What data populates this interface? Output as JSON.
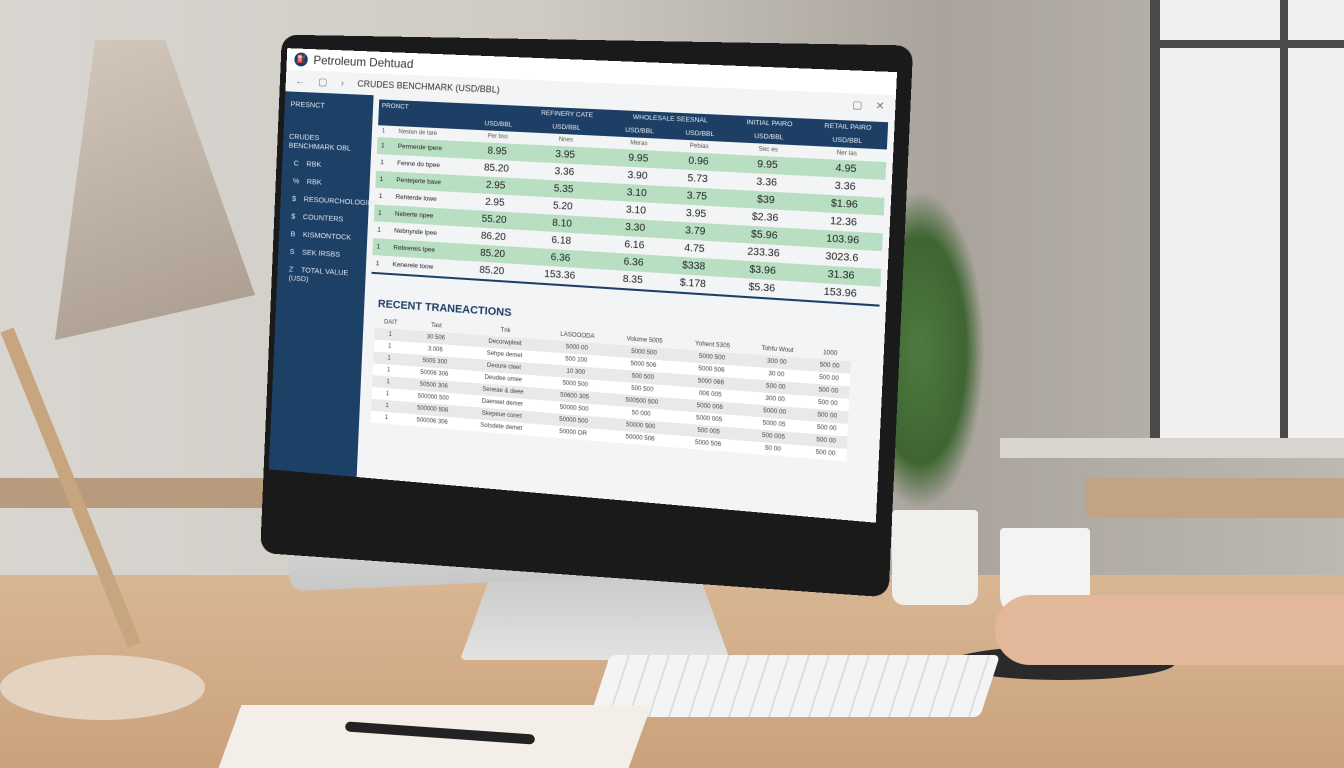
{
  "app": {
    "title": "Petroleum Dehtuad",
    "icon": "fuel-icon",
    "breadcrumb": "CRUDES BENCHMARK (USD/BBL)",
    "nav": {
      "back": "←",
      "page": "▢",
      "forward": "›"
    },
    "window": {
      "restore": "▢",
      "close": "✕"
    }
  },
  "sidebar": {
    "title": "PRESNCT",
    "subtitle": "CRUDES BENCHMARK OBL",
    "items": [
      {
        "icon": "C",
        "label": "RBK"
      },
      {
        "icon": "%",
        "label": "RBK"
      },
      {
        "icon": "$",
        "label": "RESOURCHOLOGIES"
      },
      {
        "icon": "$",
        "label": "COUNTERS"
      },
      {
        "icon": "B",
        "label": "KISMONTOCK"
      },
      {
        "icon": "S",
        "label": "SEK IRSBS"
      },
      {
        "icon": "Z",
        "label": "TOTAL VALUE (USD)"
      }
    ]
  },
  "table": {
    "product_header": "PRONCT",
    "groups": [
      "REFINERY CATE",
      "WHOLESALE SEESNAL",
      "INITIAL PAIRO",
      "RETAIL PAIRO"
    ],
    "units": [
      "USD/BBL",
      "USD/BBL",
      "USD/BBL",
      "USD/BBL",
      "USD/BBL",
      "USD/BBL"
    ],
    "subheader": {
      "num": "1",
      "label": "Nesten de tare",
      "cells": [
        "Per bss",
        "Nnes",
        "Meras",
        "Pebias",
        "Sec es",
        "Ner las"
      ]
    },
    "rows": [
      {
        "num": "1",
        "label": "Permerde tpere",
        "values": [
          "8.95",
          "3.95",
          "9.95",
          "0.96",
          "9.95",
          "4.95"
        ]
      },
      {
        "num": "1",
        "label": "Fenne do bpee",
        "values": [
          "85.20",
          "3.36",
          "3.90",
          "5.73",
          "3.36",
          "3.36"
        ]
      },
      {
        "num": "1",
        "label": "Pentejerte bave",
        "values": [
          "2.95",
          "5.35",
          "3.10",
          "3.75",
          "$39",
          "$1.96"
        ]
      },
      {
        "num": "1",
        "label": "Rehterde lowe",
        "values": [
          "2.95",
          "5.20",
          "3.10",
          "3.95",
          "$2.36",
          "12.36"
        ]
      },
      {
        "num": "1",
        "label": "Neberte npee",
        "values": [
          "55.20",
          "8.10",
          "3.30",
          "3.79",
          "$5.96",
          "103.96"
        ]
      },
      {
        "num": "1",
        "label": "Nebnynde lpee",
        "values": [
          "86.20",
          "6.18",
          "6.16",
          "4.75",
          "233.36",
          "3023.6"
        ]
      },
      {
        "num": "1",
        "label": "Rebrereis tpee",
        "values": [
          "85.20",
          "6.36",
          "6.36",
          "$338",
          "$3.96",
          "31.36"
        ]
      },
      {
        "num": "1",
        "label": "Kenerele toow",
        "values": [
          "85.20",
          "153.36",
          "8.35",
          "$.178",
          "$5.36",
          "153.96"
        ]
      }
    ]
  },
  "transactions": {
    "title": "RECENT TRANEACTIONS",
    "headers": [
      "DAIT",
      "Tast",
      "Tnk",
      "LASOOODA",
      "Volume 5005",
      "Yohent 5305",
      "Tohfu Wout",
      "1000"
    ],
    "rows": [
      [
        "1",
        "30 506",
        "Decorwpleet",
        "5000 00",
        "5000 500",
        "5000 500",
        "300 00",
        "500 00"
      ],
      [
        "1",
        "3.006",
        "Sehpe demet",
        "500 100",
        "5000 506",
        "5000 506",
        "30 00",
        "500 00"
      ],
      [
        "1",
        "5005 300",
        "Deoure cleet",
        "10 300",
        "500 500",
        "5000 066",
        "500 00",
        "500 00"
      ],
      [
        "1",
        "50006 306",
        "Deudee umee",
        "5000 500",
        "500 500",
        "006 005",
        "300 00",
        "500 00"
      ],
      [
        "1",
        "50500 306",
        "Seneae & deee",
        "50600 305",
        "500500 500",
        "5000 006",
        "5000 00",
        "500 00"
      ],
      [
        "1",
        "500000 500",
        "Daeneet demer",
        "50000 500",
        "50 000",
        "5000 005",
        "5000 05",
        "500 00"
      ],
      [
        "1",
        "500000 506",
        "Skepeue conet",
        "50000 500",
        "50000 500",
        "500 005",
        "500 005",
        "500 00"
      ],
      [
        "1",
        "500006 306",
        "Sotsdete demet",
        "50000 OR",
        "50000 506",
        "5000 506",
        "50 00",
        "500 00"
      ]
    ]
  },
  "colors": {
    "navy": "#1d3f66",
    "green_row": "#b9dfc3"
  }
}
